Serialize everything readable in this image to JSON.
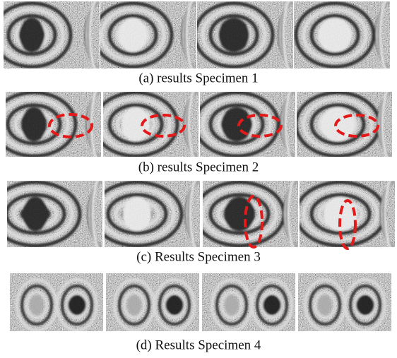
{
  "panels": [
    {
      "caption": "(a) results Specimen 1"
    },
    {
      "caption": "(b) results Specimen 2"
    },
    {
      "caption": "(c) Results Specimen 3"
    },
    {
      "caption": "(d) Results Specimen 4"
    }
  ]
}
